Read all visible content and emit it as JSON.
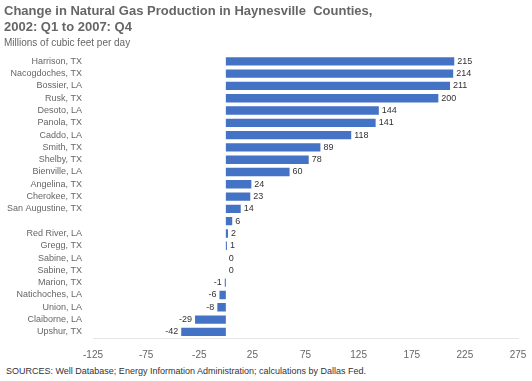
{
  "chart_data": {
    "type": "bar",
    "orientation": "horizontal",
    "title": [
      "Change in Natural Gas Production in Haynesville  Counties,",
      "2002: Q1 to 2007: Q4"
    ],
    "subtitle": "Millions of cubic feet per day",
    "annotations": [
      "SOURCES: Well Database; Energy Information Administration; calculations by Dallas Fed."
    ],
    "categories": [
      "Harrison, TX",
      "Nacogdoches, TX",
      "Bossier, LA",
      "Rusk, TX",
      "Desoto, LA",
      "Panola, TX",
      "Caddo, LA",
      "Smith, TX",
      "Shelby, TX",
      "Bienville, LA",
      "Angelina, TX",
      "Cherokee, TX",
      "San Augustine, TX",
      null,
      "Red River, LA",
      "Gregg, TX",
      "Sabine, LA",
      "Sabine, TX",
      "Marion, TX",
      "Natichoches, LA",
      "Union, LA",
      "Claiborne, LA",
      "Upshur, TX"
    ],
    "values": [
      215,
      214,
      211,
      200,
      144,
      141,
      118,
      89,
      78,
      60,
      24,
      23,
      14,
      6,
      2,
      1,
      0,
      0,
      -1,
      -6,
      -8,
      -29,
      -42
    ],
    "color": "#4472C4",
    "xlim": [
      -125,
      275
    ],
    "xticks": [
      -125,
      -75,
      -25,
      25,
      75,
      125,
      175,
      225,
      275
    ],
    "data_labels": true,
    "grid": false
  }
}
